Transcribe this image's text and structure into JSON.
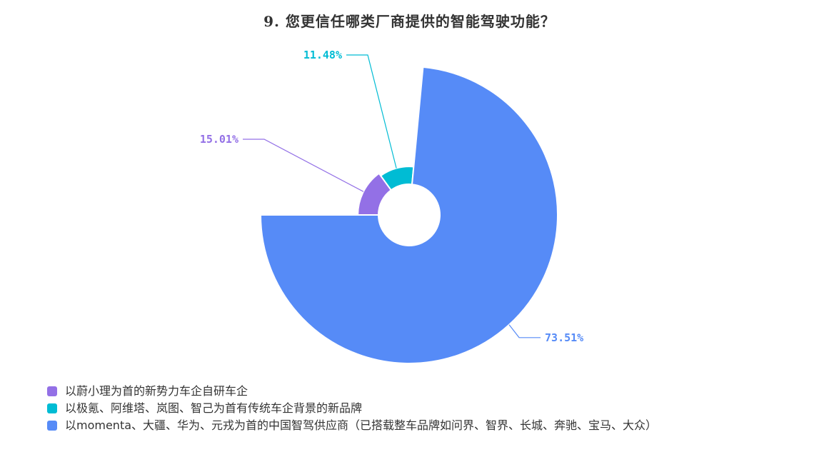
{
  "chart_data": {
    "type": "pie",
    "title": "9. 您更信任哪类厂商提供的智能驾驶功能？",
    "style": "rose",
    "start_direction": "left",
    "legend_position": "bottom-left",
    "slices": [
      {
        "name": "以蔚小理为首的新势力车企自研车企",
        "value": 15.01,
        "label": "15.01%",
        "color": "#9370e6"
      },
      {
        "name": "以极氪、阿维塔、岚图、智己为首有传统车企背景的新品牌",
        "value": 11.48,
        "label": "11.48%",
        "color": "#00bcd4"
      },
      {
        "name": "以momenta、大疆、华为、元戎为首的中国智驾供应商（已搭载整车品牌如问界、智界、长城、奔驰、宝马、大众）",
        "value": 73.51,
        "label": "73.51%",
        "color": "#568bf7"
      }
    ]
  }
}
